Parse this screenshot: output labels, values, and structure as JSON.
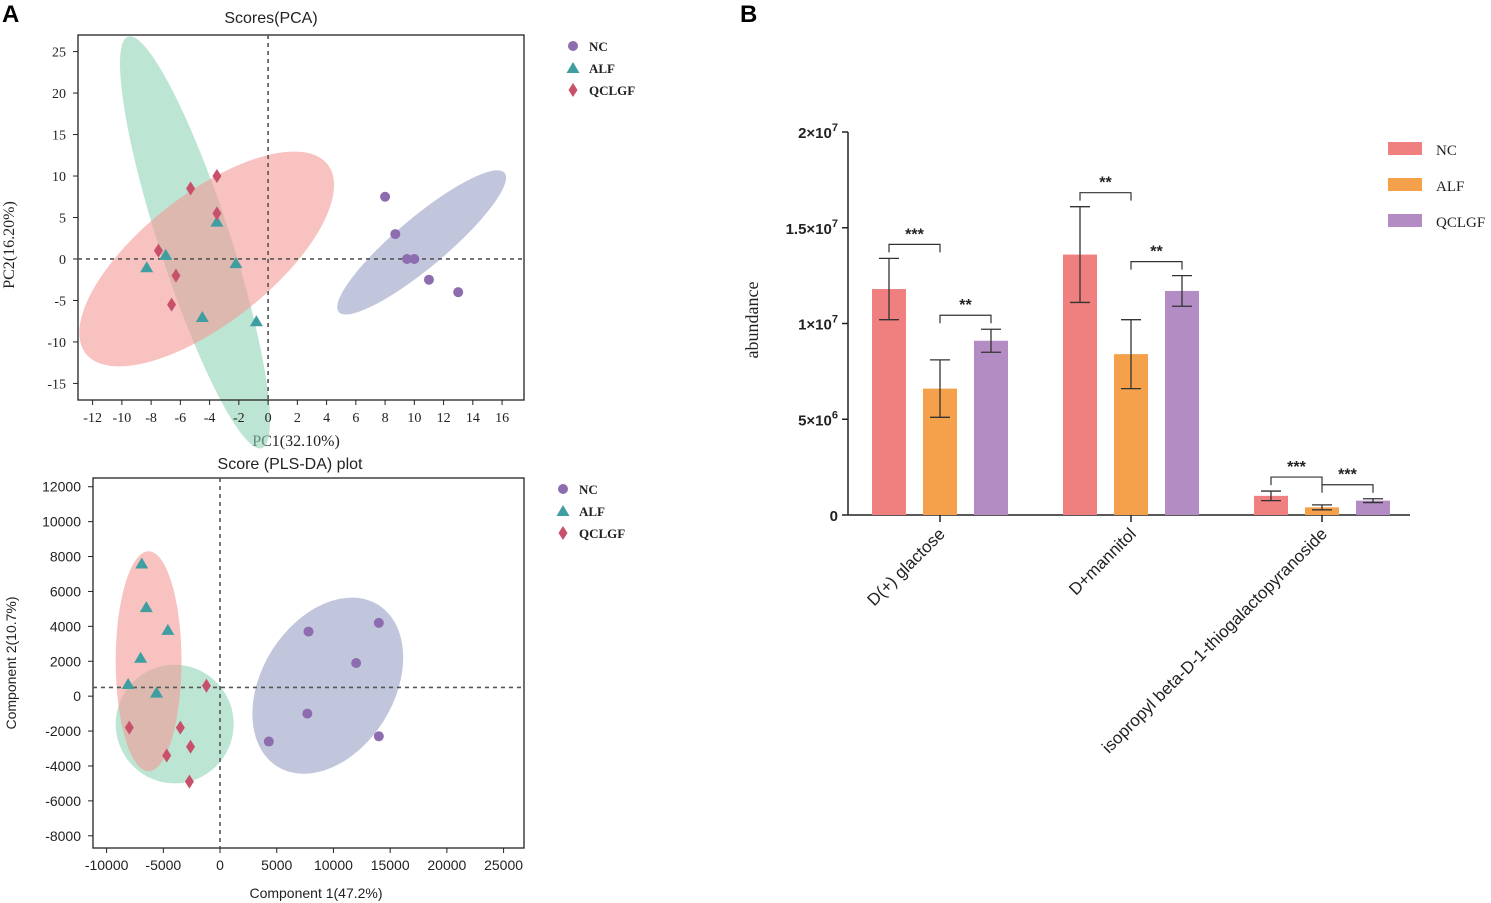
{
  "panels": {
    "a_label": "A",
    "b_label": "B"
  },
  "colors": {
    "nc": "#8e6cb0",
    "alf": "#3e9ea0",
    "qclgf": "#c8506a",
    "nc_ellipse": "#9aa0c4",
    "alf_ellipse": "#8fd3b8",
    "qclgf_ellipse": "#f29a96",
    "bar_nc": "#f08080",
    "bar_alf": "#f5a04a",
    "bar_qclgf": "#b48cc4"
  },
  "chart_data": [
    {
      "id": "pca",
      "type": "scatter",
      "title": "Scores(PCA)",
      "xlabel": "PC1(32.10%)",
      "ylabel": "PC2(16.20%)",
      "xlim": [
        -13,
        17.5
      ],
      "ylim": [
        -17,
        27
      ],
      "xticks": [
        -12,
        -10,
        -8,
        -6,
        -4,
        -2,
        0,
        2,
        4,
        6,
        8,
        10,
        12,
        14,
        16
      ],
      "yticks": [
        25,
        20,
        15,
        10,
        5,
        0,
        -5,
        -10,
        -15
      ],
      "legend": [
        "NC",
        "ALF",
        "QCLGF"
      ],
      "series": [
        {
          "name": "NC",
          "marker": "circle",
          "points": [
            [
              8.0,
              7.5
            ],
            [
              8.7,
              3.0
            ],
            [
              9.5,
              0.0
            ],
            [
              10.0,
              0.0
            ],
            [
              11.0,
              -2.5
            ],
            [
              13.0,
              -4.0
            ]
          ]
        },
        {
          "name": "ALF",
          "marker": "triangle",
          "points": [
            [
              -3.5,
              4.5
            ],
            [
              -8.3,
              -1.0
            ],
            [
              -7.0,
              0.5
            ],
            [
              -2.2,
              -0.5
            ],
            [
              -4.5,
              -7.0
            ],
            [
              -0.8,
              -7.5
            ]
          ]
        },
        {
          "name": "QCLGF",
          "marker": "diamond",
          "points": [
            [
              -3.5,
              10.0
            ],
            [
              -5.3,
              8.5
            ],
            [
              -3.5,
              5.5
            ],
            [
              -7.5,
              1.0
            ],
            [
              -6.3,
              -2.0
            ],
            [
              -6.6,
              -5.5
            ]
          ]
        }
      ],
      "ellipses": [
        {
          "group": "NC",
          "cx": 10.5,
          "cy": 2.0,
          "rx": 7.4,
          "ry": 3.0,
          "angle_deg": -40
        },
        {
          "group": "ALF",
          "cx": -5.0,
          "cy": 2.0,
          "rx": 14.8,
          "ry": 4.3,
          "angle_deg": 72
        },
        {
          "group": "QCLGF",
          "cx": -4.2,
          "cy": 0.0,
          "rx": 10.5,
          "ry": 7.8,
          "angle_deg": -38
        }
      ]
    },
    {
      "id": "plsda",
      "type": "scatter",
      "title": "Score (PLS-DA) plot",
      "xlabel": "Component 1(47.2%)",
      "ylabel": "Component 2(10.7%)",
      "xlim": [
        -11200,
        26800
      ],
      "ylim": [
        -8700,
        12500
      ],
      "xticks": [
        -10000,
        -5000,
        0,
        5000,
        10000,
        15000,
        20000,
        25000
      ],
      "yticks": [
        12000,
        10000,
        8000,
        6000,
        4000,
        2000,
        0,
        -2000,
        -4000,
        -6000,
        -8000
      ],
      "legend": [
        "NC",
        "ALF",
        "QCLGF"
      ],
      "series": [
        {
          "name": "NC",
          "marker": "circle",
          "points": [
            [
              7800,
              3700
            ],
            [
              14000,
              4200
            ],
            [
              12000,
              1900
            ],
            [
              7700,
              -1000
            ],
            [
              4300,
              -2600
            ],
            [
              14000,
              -2300
            ]
          ]
        },
        {
          "name": "ALF",
          "marker": "triangle",
          "points": [
            [
              -6900,
              7600
            ],
            [
              -6500,
              5100
            ],
            [
              -4600,
              3800
            ],
            [
              -7000,
              2200
            ],
            [
              -8100,
              700
            ],
            [
              -5600,
              200
            ]
          ]
        },
        {
          "name": "QCLGF",
          "marker": "diamond",
          "points": [
            [
              -1200,
              600
            ],
            [
              -8000,
              -1800
            ],
            [
              -3500,
              -1800
            ],
            [
              -4700,
              -3400
            ],
            [
              -2600,
              -2900
            ],
            [
              -2700,
              -4900
            ]
          ]
        }
      ],
      "ellipses": [
        {
          "group": "NC",
          "cx": 9500,
          "cy": 600,
          "rx": 11200,
          "ry": 7000,
          "angle_deg": 0,
          "shape": "tilted"
        },
        {
          "group": "ALF",
          "cx": -4000,
          "cy": -1600,
          "rx": 5200,
          "ry": 3400,
          "angle_deg": 0
        },
        {
          "group": "QCLGF",
          "cx": -6300,
          "cy": 2000,
          "rx": 2900,
          "ry": 6300,
          "angle_deg": 0
        }
      ]
    },
    {
      "id": "bars",
      "type": "bar",
      "ylabel": "abundance",
      "ylim": [
        0,
        20000000
      ],
      "yticks": [
        {
          "value": 20000000,
          "base": "2×10",
          "exp": "7"
        },
        {
          "value": 15000000,
          "base": "1.5×10",
          "exp": "7"
        },
        {
          "value": 10000000,
          "base": "1×10",
          "exp": "7"
        },
        {
          "value": 5000000,
          "base": "5×10",
          "exp": "6"
        },
        {
          "value": 0,
          "base": "0",
          "exp": ""
        }
      ],
      "categories": [
        "D(+) glactose",
        "D+mannitol",
        "isopropyl beta-D-1-thiogalactopyranoside"
      ],
      "legend": [
        "NC",
        "ALF",
        "QCLGF"
      ],
      "series": [
        {
          "name": "NC",
          "values": [
            11800000,
            13600000,
            1000000
          ],
          "errors": [
            1600000,
            2500000,
            250000
          ]
        },
        {
          "name": "ALF",
          "values": [
            6600000,
            8400000,
            400000
          ],
          "errors": [
            1500000,
            1800000,
            130000
          ]
        },
        {
          "name": "QCLGF",
          "values": [
            9100000,
            11700000,
            750000
          ],
          "errors": [
            600000,
            800000,
            100000
          ]
        }
      ],
      "significance": [
        {
          "category": 0,
          "from": 0,
          "to": 1,
          "label": "***"
        },
        {
          "category": 0,
          "from": 1,
          "to": 2,
          "label": "**"
        },
        {
          "category": 1,
          "from": 0,
          "to": 1,
          "label": "**"
        },
        {
          "category": 1,
          "from": 1,
          "to": 2,
          "label": "**"
        },
        {
          "category": 2,
          "from": 0,
          "to": 1,
          "label": "***"
        },
        {
          "category": 2,
          "from": 1,
          "to": 2,
          "label": "***"
        }
      ]
    }
  ]
}
